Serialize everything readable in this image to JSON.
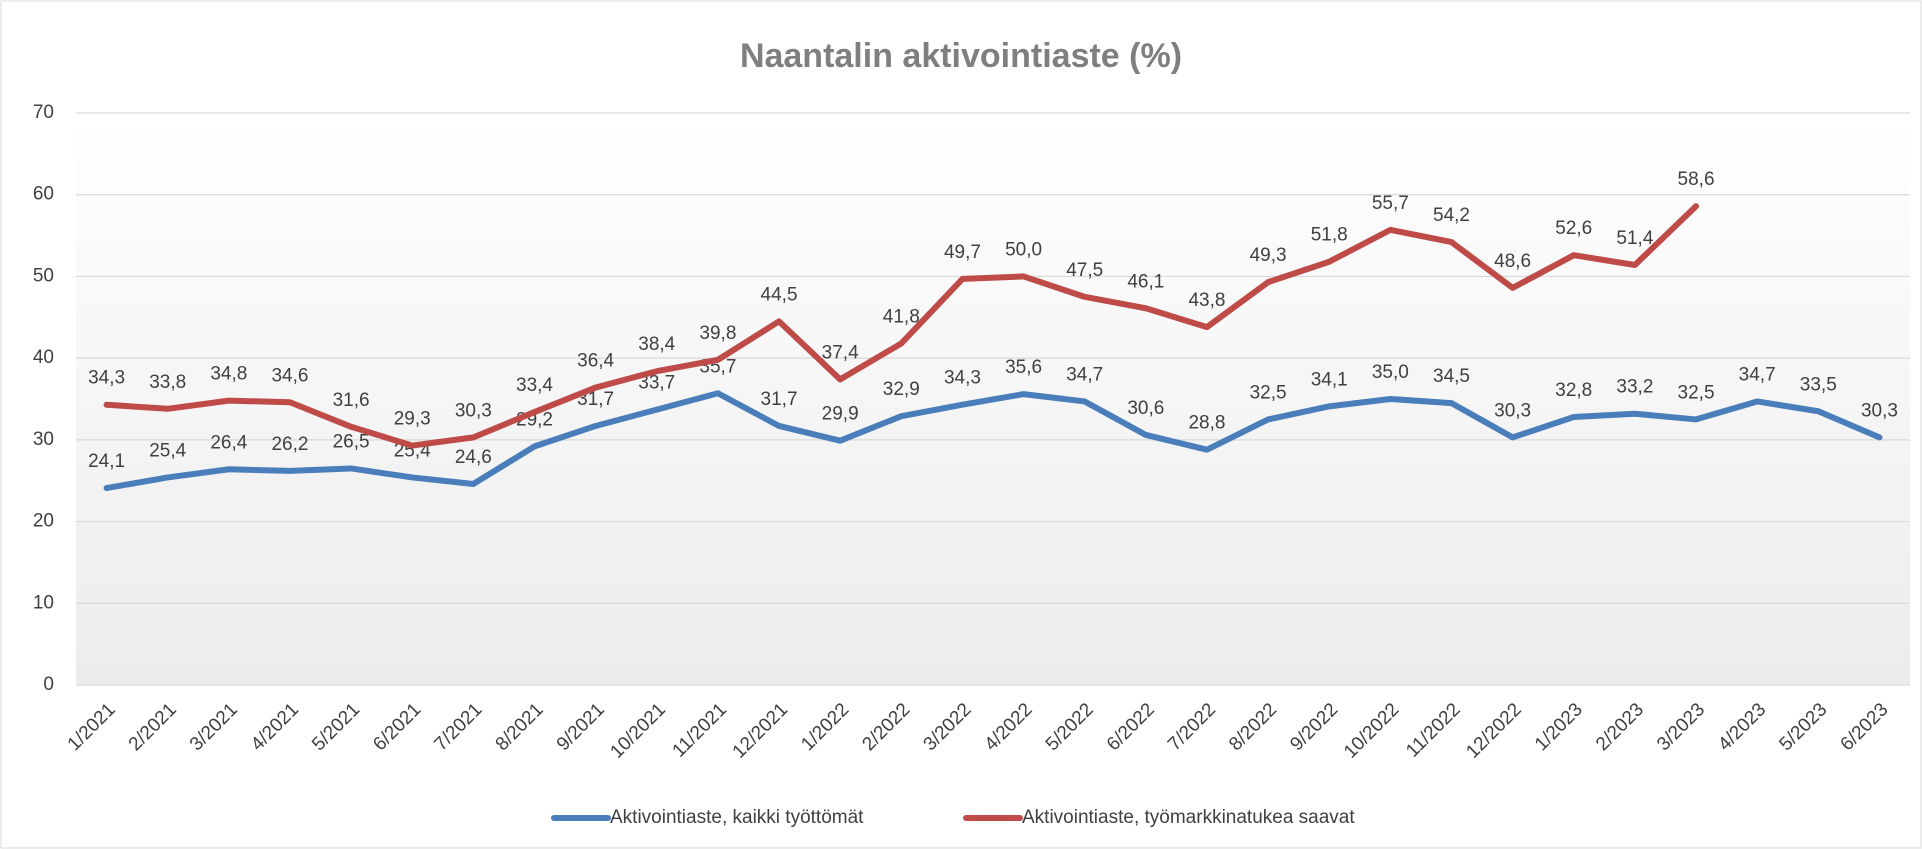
{
  "chart_data": {
    "type": "line",
    "title": "Naantalin aktivointiaste (%)",
    "categories": [
      "1/2021",
      "2/2021",
      "3/2021",
      "4/2021",
      "5/2021",
      "6/2021",
      "7/2021",
      "8/2021",
      "9/2021",
      "10/2021",
      "11/2021",
      "12/2021",
      "1/2022",
      "2/2022",
      "3/2022",
      "4/2022",
      "5/2022",
      "6/2022",
      "7/2022",
      "8/2022",
      "9/2022",
      "10/2022",
      "11/2022",
      "12/2022",
      "1/2023",
      "2/2023",
      "3/2023",
      "4/2023",
      "5/2023",
      "6/2023"
    ],
    "series": [
      {
        "name": "Aktivointiaste, kaikki työttömät",
        "color": "#4a7ebb",
        "values": [
          24.1,
          25.4,
          26.4,
          26.2,
          26.5,
          25.4,
          24.6,
          29.2,
          31.7,
          33.7,
          35.7,
          31.7,
          29.9,
          32.9,
          34.3,
          35.6,
          34.7,
          30.6,
          28.8,
          32.5,
          34.1,
          35.0,
          34.5,
          30.3,
          32.8,
          33.2,
          32.5,
          34.7,
          33.5,
          30.3
        ],
        "value_labels": [
          "24,1",
          "25,4",
          "26,4",
          "26,2",
          "26,5",
          "25,4",
          "24,6",
          "29,2",
          "31,7",
          "33,7",
          "35,7",
          "31,7",
          "29,9",
          "32,9",
          "34,3",
          "35,6",
          "34,7",
          "30,6",
          "28,8",
          "32,5",
          "34,1",
          "35,0",
          "34,5",
          "30,3",
          "32,8",
          "33,2",
          "32,5",
          "34,7",
          "33,5",
          "30,3"
        ]
      },
      {
        "name": "Aktivointiaste, työmarkkinatukea saavat",
        "color": "#be4b48",
        "values": [
          34.3,
          33.8,
          34.8,
          34.6,
          31.6,
          29.3,
          30.3,
          33.4,
          36.4,
          38.4,
          39.8,
          44.5,
          37.4,
          41.8,
          49.7,
          50.0,
          47.5,
          46.1,
          43.8,
          49.3,
          51.8,
          55.7,
          54.2,
          48.6,
          52.6,
          51.4,
          58.6,
          null,
          null,
          null
        ],
        "value_labels": [
          "34,3",
          "33,8",
          "34,8",
          "34,6",
          "31,6",
          "29,3",
          "30,3",
          "33,4",
          "36,4",
          "38,4",
          "39,8",
          "44,5",
          "37,4",
          "41,8",
          "49,7",
          "50,0",
          "47,5",
          "46,1",
          "43,8",
          "49,3",
          "51,8",
          "55,7",
          "54,2",
          "48,6",
          "52,6",
          "51,4",
          "58,6",
          null,
          null,
          null
        ]
      }
    ],
    "ylim": [
      0,
      70
    ],
    "yticks": [
      0,
      10,
      20,
      30,
      40,
      50,
      60,
      70
    ],
    "grid": true,
    "legend": "bottom"
  }
}
